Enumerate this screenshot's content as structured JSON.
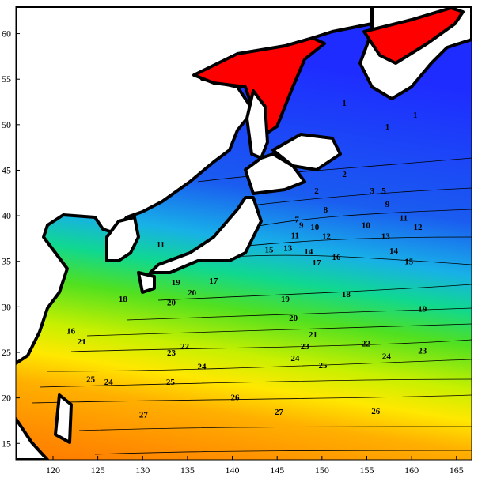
{
  "chart_data": {
    "type": "contour-map",
    "xlim": [
      115.85,
      166.7
    ],
    "ylim": [
      13.2,
      63
    ],
    "xticks": [
      120,
      125,
      130,
      135,
      140,
      145,
      150,
      155,
      160,
      165
    ],
    "yticks": [
      15,
      20,
      25,
      30,
      35,
      40,
      45,
      50,
      55,
      60
    ],
    "labels": {
      "x": [
        152.5,
        157.3,
        160.4,
        152.5,
        149.4,
        155.6,
        156.9,
        157.3,
        147.2,
        150.4,
        147.7,
        149.2,
        154.9,
        159.1,
        160.7,
        150.5,
        157.1,
        158.0,
        159.7,
        147.0,
        132.0,
        146.2,
        148.5,
        144.1,
        151.6,
        149.4,
        152.7,
        145.9,
        161.2,
        146.8,
        133.2,
        135.5,
        149.0,
        123.2,
        134.7,
        154.9,
        148.1,
        133.2,
        161.2,
        147.0,
        136.6,
        126.2,
        157.2,
        124.2,
        133.1,
        150.1,
        140.3,
        156.0,
        130.1,
        145.2,
        137.9,
        133.7,
        127.8,
        122.0
      ],
      "y": [
        52.4,
        49.8,
        51.1,
        44.6,
        42.8,
        42.8,
        42.8,
        41.3,
        39.6,
        40.7,
        39.0,
        38.8,
        39.0,
        39.8,
        38.8,
        37.8,
        37.8,
        36.2,
        35.0,
        37.9,
        36.9,
        36.5,
        36.1,
        36.3,
        35.5,
        34.9,
        31.4,
        30.9,
        29.8,
        28.8,
        30.5,
        31.6,
        27.0,
        26.2,
        25.7,
        26.0,
        25.7,
        25.0,
        25.2,
        24.4,
        23.5,
        21.8,
        24.6,
        22.1,
        21.8,
        23.6,
        20.1,
        18.6,
        18.2,
        18.5,
        32.9,
        32.7,
        30.9,
        27.4
      ],
      "values": [
        1,
        1,
        1,
        2,
        2,
        3,
        5,
        9,
        7,
        8,
        9,
        10,
        10,
        11,
        12,
        12,
        13,
        14,
        15,
        11,
        11,
        13,
        14,
        15,
        16,
        17,
        18,
        19,
        19,
        20,
        20,
        20,
        21,
        21,
        22,
        22,
        23,
        23,
        23,
        24,
        24,
        24,
        24,
        25,
        25,
        25,
        26,
        26,
        27,
        27,
        17,
        19,
        18,
        16
      ]
    }
  }
}
